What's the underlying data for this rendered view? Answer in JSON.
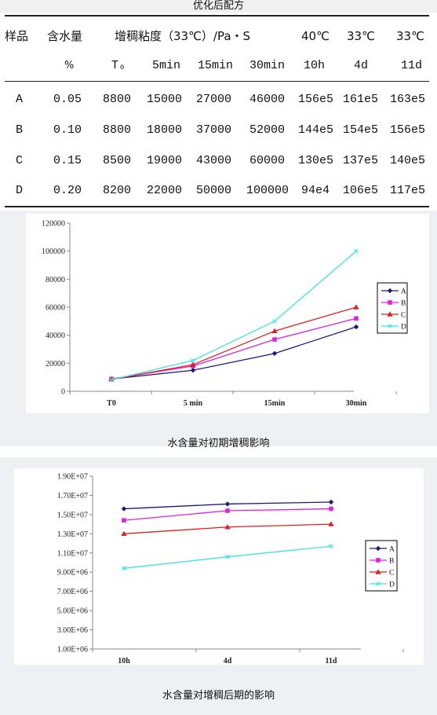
{
  "page_title": "优化后配方",
  "table": {
    "headers1": [
      "样品",
      "含水量",
      "增稠粘度（33℃）/Pa・S",
      "40℃",
      "33℃",
      "33℃"
    ],
    "headers2": [
      "%",
      "T₀",
      "5min",
      "15min",
      "30min",
      "10h",
      "4d",
      "11d"
    ],
    "rows": [
      [
        "A",
        "0.05",
        "8800",
        "15000",
        "27000",
        "46000",
        "156e5",
        "161e5",
        "163e5"
      ],
      [
        "B",
        "0.10",
        "8800",
        "18000",
        "37000",
        "52000",
        "144e5",
        "154e5",
        "156e5"
      ],
      [
        "C",
        "0.15",
        "8500",
        "19000",
        "43000",
        "60000",
        "130e5",
        "137e5",
        "140e5"
      ],
      [
        "D",
        "0.20",
        "8200",
        "22000",
        "50000",
        "100000",
        "94e4",
        "106e5",
        "117e5"
      ]
    ]
  },
  "chart_data": [
    {
      "type": "line",
      "title": "",
      "caption": "水含量对初期增稠影响",
      "categories": [
        "T0",
        "5 min",
        "15min",
        "30min"
      ],
      "ylim": [
        0,
        120000
      ],
      "yticks": [
        "0",
        "20000",
        "40000",
        "60000",
        "80000",
        "100000",
        "120000"
      ],
      "ytick_values": [
        0,
        20000,
        40000,
        60000,
        80000,
        100000,
        120000
      ],
      "legend_position": "right",
      "grid": false,
      "series": [
        {
          "name": "A",
          "color": "#1a1a7a",
          "marker": "diamond",
          "values": [
            8800,
            15000,
            27000,
            46000
          ]
        },
        {
          "name": "B",
          "color": "#e020e0",
          "marker": "square",
          "values": [
            8800,
            18000,
            37000,
            52000
          ]
        },
        {
          "name": "C",
          "color": "#e02020",
          "marker": "triangle",
          "values": [
            8500,
            19000,
            43000,
            60000
          ]
        },
        {
          "name": "D",
          "color": "#40e0e8",
          "marker": "x",
          "values": [
            8200,
            22000,
            50000,
            100000
          ]
        }
      ]
    },
    {
      "type": "line",
      "title": "",
      "caption": "水含量对增稠后期的影响",
      "categories": [
        "10h",
        "4d",
        "11d"
      ],
      "ylim": [
        1000000,
        19000000
      ],
      "yticks": [
        "1.00E+06",
        "3.00E+06",
        "5.00E+06",
        "7.00E+06",
        "9.00E+06",
        "1.10E+07",
        "1.30E+07",
        "1.50E+07",
        "1.70E+07",
        "1.90E+07"
      ],
      "ytick_values": [
        1000000,
        3000000,
        5000000,
        7000000,
        9000000,
        11000000,
        13000000,
        15000000,
        17000000,
        19000000
      ],
      "legend_position": "right",
      "grid": false,
      "series": [
        {
          "name": "A",
          "color": "#1a1a7a",
          "marker": "diamond",
          "values": [
            15600000,
            16100000,
            16300000
          ]
        },
        {
          "name": "B",
          "color": "#e020e0",
          "marker": "square",
          "values": [
            14400000,
            15400000,
            15600000
          ]
        },
        {
          "name": "C",
          "color": "#e02020",
          "marker": "triangle",
          "values": [
            13000000,
            13700000,
            14000000
          ]
        },
        {
          "name": "D",
          "color": "#40e0e8",
          "marker": "x",
          "values": [
            9400000,
            10600000,
            11700000
          ]
        }
      ]
    }
  ]
}
